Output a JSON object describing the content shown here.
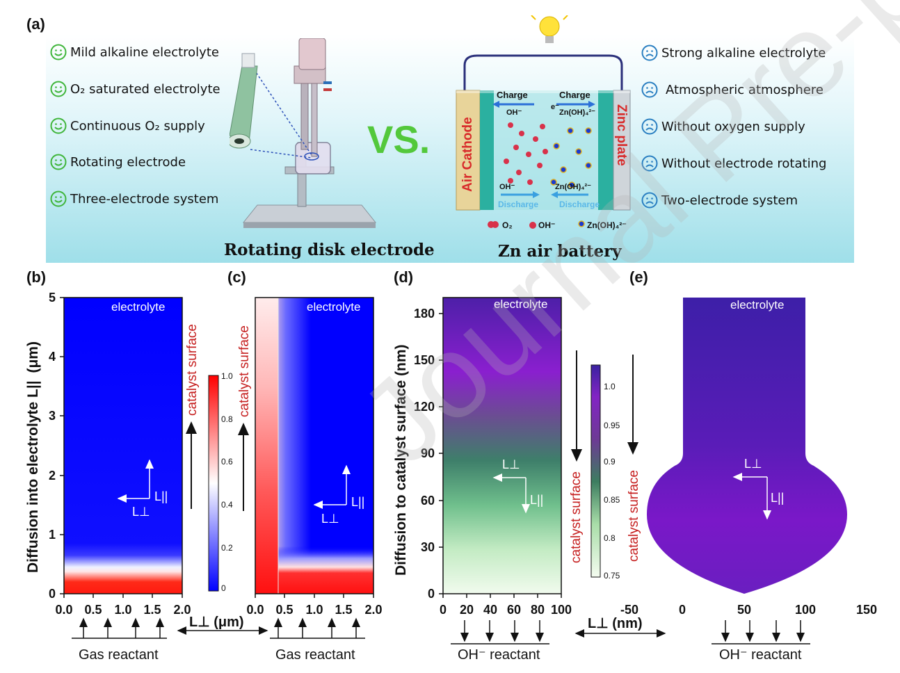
{
  "panel_a": {
    "letter": "(a)",
    "left_features": [
      "Mild alkaline electrolyte",
      "O₂ saturated electrolyte",
      "Continuous O₂ supply",
      "Rotating electrode",
      "Three-electrode system"
    ],
    "right_features": [
      "Strong alkaline electrolyte",
      "Atmospheric atmosphere",
      "Without oxygen supply",
      "Without electrode rotating",
      "Two-electrode system"
    ],
    "vs": "VS.",
    "left_caption": "Rotating disk electrode",
    "right_caption": "Zn air battery",
    "battery": {
      "air_cathode": "Air Cathode",
      "zinc_plate": "Zinc plate",
      "charge": "Charge",
      "discharge": "Discharge",
      "oh": "OH⁻",
      "electron": "e⁻",
      "zincate": "Zn(OH)₄²⁻",
      "legend_o2": "O₂",
      "legend_oh": "OH⁻",
      "legend_zincate": "Zn(OH)₄²⁻"
    },
    "smile_color": "#3fb53a",
    "frown_color": "#2a7fc1"
  },
  "panel_b": {
    "letter": "(b)",
    "ylabel": "Diffusion into electrolyte L||",
    "yunit": "(μm)",
    "yticks": [
      "0",
      "1",
      "2",
      "3",
      "4",
      "5"
    ],
    "xticks": [
      "0.0",
      "0.5",
      "1.0",
      "1.5",
      "2.0"
    ],
    "electrolyte": "electrolyte",
    "catalyst_surface": "catalyst surface",
    "l_perp": "L⊥",
    "l_par": "L||"
  },
  "colorbar_bc": {
    "ticks": [
      "0",
      "0.2",
      "0.4",
      "0.6",
      "0.8",
      "1.0"
    ]
  },
  "panel_c": {
    "letter": "(c)",
    "xticks": [
      "0.0",
      "0.5",
      "1.0",
      "1.5",
      "2.0"
    ],
    "electrolyte": "electrolyte",
    "catalyst_surface": "catalyst surface",
    "l_perp": "L⊥",
    "l_par": "L||"
  },
  "shared_bc": {
    "xlabel": "L⊥ (μm)",
    "reactant": "Gas reactant"
  },
  "panel_d": {
    "letter": "(d)",
    "ylabel": "Diffusion to catalyst surface (nm)",
    "yticks": [
      "0",
      "30",
      "60",
      "90",
      "120",
      "150",
      "180"
    ],
    "xticks": [
      "0",
      "20",
      "40",
      "60",
      "80",
      "100"
    ],
    "electrolyte": "electrolyte",
    "catalyst_surface": "catalyst surface",
    "l_perp": "L⊥",
    "l_par": "L||",
    "reactant": "OH⁻ reactant"
  },
  "colorbar_de": {
    "ticks": [
      "0.75",
      "0.8",
      "0.85",
      "0.9",
      "0.95",
      "1.0"
    ]
  },
  "panel_e": {
    "letter": "(e)",
    "xticks": [
      "-50",
      "0",
      "50",
      "100",
      "150"
    ],
    "electrolyte": "electrolyte",
    "catalyst_surface": "catalyst surface",
    "l_perp": "L⊥",
    "l_par": "L||",
    "reactant": "OH⁻ reactant"
  },
  "shared_de": {
    "xlabel": "L⊥ (nm)"
  },
  "watermark": "Journal Pre-proof"
}
